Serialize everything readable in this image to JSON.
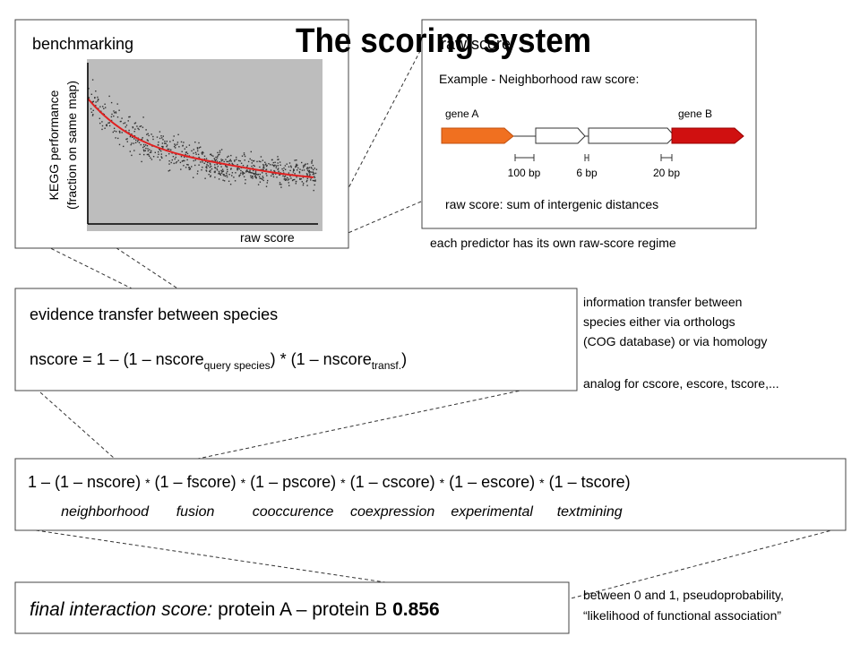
{
  "title": "The scoring system",
  "benchmark": {
    "label": "benchmarking",
    "y_label": [
      "KEGG performance",
      "(fraction on same map)"
    ],
    "x_label": "raw score"
  },
  "raw": {
    "label": "raw score",
    "example": "Example - Neighborhood raw score:",
    "gene_a": "gene A",
    "gene_b": "gene B",
    "distances": [
      "100 bp",
      "6 bp",
      "20 bp"
    ],
    "caption": "raw score: sum of intergenic distances",
    "note": "each predictor has its own raw-score regime"
  },
  "transfer": {
    "heading": "evidence transfer between species",
    "formula": [
      "nscore = 1 –  (1 – nscore",
      "query species",
      ") * (1 – nscore",
      "transf.",
      ")"
    ],
    "notes": [
      "information transfer between",
      "species either via orthologs",
      "(COG database) or via homology"
    ],
    "analog": "analog for cscore, escore, tscore,..."
  },
  "combined": {
    "terms": [
      "1 – (1 – nscore)",
      "(1 – fscore)",
      "(1 – pscore)",
      "(1 – cscore)",
      "(1 – escore)",
      "(1 – tscore)"
    ],
    "operator": "*",
    "labels": [
      "neighborhood",
      "fusion",
      "cooccurence",
      "coexpression",
      "experimental",
      "textmining"
    ]
  },
  "final": {
    "label": "final interaction score:",
    "pair": "protein A – protein B",
    "score": 0.856,
    "notes": [
      "between 0 and 1, pseudoprobability,",
      "“likelihood of functional association”"
    ]
  }
}
